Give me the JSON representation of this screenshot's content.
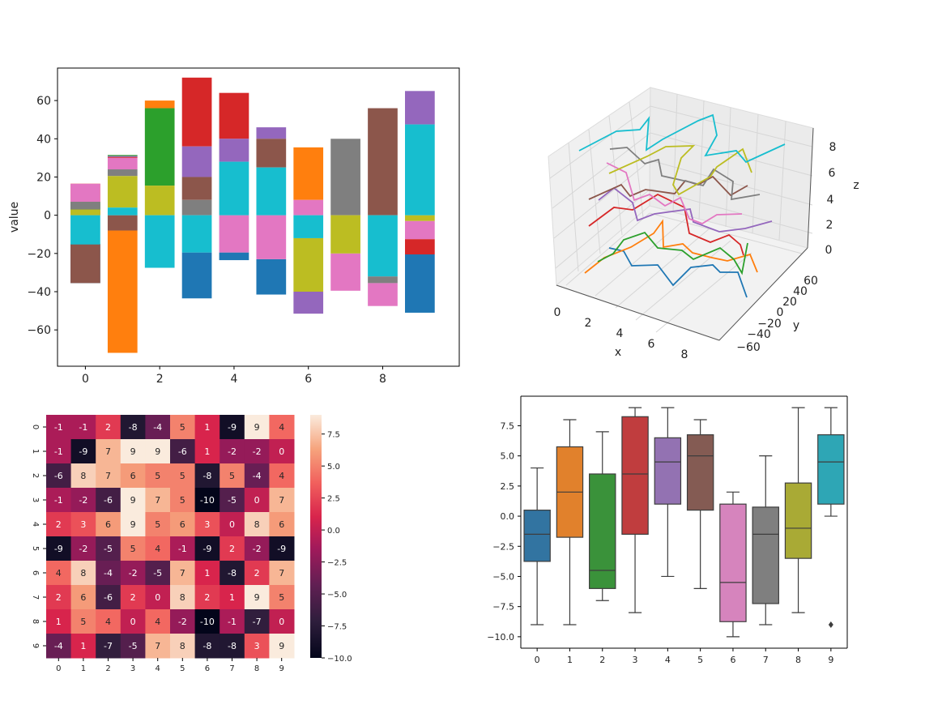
{
  "chart_data": [
    {
      "type": "bar",
      "stacked": true,
      "ylabel": "value",
      "xlim": [
        -0.75,
        10.06
      ],
      "ylim": [
        -79,
        77
      ],
      "x_ticks": [
        0,
        2,
        4,
        6,
        8
      ],
      "y_ticks": [
        -60,
        -40,
        -20,
        0,
        20,
        40,
        60
      ],
      "series_colors": [
        "#1f77b4",
        "#ff7f0e",
        "#2ca02c",
        "#d62728",
        "#9467bd",
        "#8c564b",
        "#e377c2",
        "#7f7f7f",
        "#bcbd22",
        "#17becf"
      ],
      "bars": [
        {
          "x": 0,
          "segments": [
            [
              0,
              -15,
              -35.5
            ],
            [
              1,
              7,
              16.5
            ],
            [
              2,
              2.5,
              7
            ],
            [
              3,
              0,
              2.5
            ],
            [
              4,
              -15.3,
              -15
            ],
            [
              5,
              -15,
              -35.5
            ],
            [
              6,
              7,
              16.5
            ],
            [
              7,
              3,
              7
            ],
            [
              8,
              0,
              3
            ],
            [
              9,
              0,
              -15.3
            ]
          ]
        },
        {
          "x": 1,
          "segments": [
            [
              0,
              -8,
              -8
            ],
            [
              1,
              -8,
              -72
            ],
            [
              2,
              31,
              31.5
            ],
            [
              3,
              30,
              30.5
            ],
            [
              4,
              30.5,
              31
            ],
            [
              5,
              0,
              -8
            ],
            [
              6,
              24,
              30
            ],
            [
              7,
              20.5,
              24
            ],
            [
              8,
              4,
              20.5
            ],
            [
              9,
              0,
              4
            ]
          ]
        },
        {
          "x": 2,
          "segments": [
            [
              0,
              0,
              0
            ],
            [
              1,
              56,
              60
            ],
            [
              2,
              15.5,
              56
            ],
            [
              3,
              0,
              0
            ],
            [
              4,
              0,
              0
            ],
            [
              5,
              0,
              0
            ],
            [
              6,
              0,
              0
            ],
            [
              7,
              0,
              0
            ],
            [
              8,
              0,
              15.5
            ],
            [
              9,
              0,
              -27.5
            ]
          ]
        },
        {
          "x": 3,
          "segments": [
            [
              0,
              -19.5,
              -43.5
            ],
            [
              1,
              0,
              0
            ],
            [
              2,
              0,
              0
            ],
            [
              3,
              36,
              72
            ],
            [
              4,
              20,
              36
            ],
            [
              5,
              8,
              20
            ],
            [
              6,
              0,
              0
            ],
            [
              7,
              0,
              8
            ],
            [
              8,
              0,
              0
            ],
            [
              9,
              0,
              -19.5
            ]
          ]
        },
        {
          "x": 4,
          "segments": [
            [
              0,
              -19.5,
              -23.5
            ],
            [
              1,
              0,
              0
            ],
            [
              2,
              0,
              0
            ],
            [
              3,
              40,
              64
            ],
            [
              4,
              28,
              40
            ],
            [
              5,
              0,
              0
            ],
            [
              6,
              0,
              -19.5
            ],
            [
              7,
              0,
              0
            ],
            [
              8,
              0,
              0
            ],
            [
              9,
              0,
              28
            ]
          ]
        },
        {
          "x": 5,
          "segments": [
            [
              0,
              -23,
              -41.5
            ],
            [
              1,
              0,
              0
            ],
            [
              2,
              0,
              0
            ],
            [
              3,
              0,
              0
            ],
            [
              4,
              40,
              46
            ],
            [
              5,
              25,
              40
            ],
            [
              6,
              0,
              -23
            ],
            [
              7,
              0,
              0
            ],
            [
              8,
              0,
              0
            ],
            [
              9,
              0,
              25
            ]
          ]
        },
        {
          "x": 6,
          "segments": [
            [
              0,
              0,
              0
            ],
            [
              1,
              8,
              35.5
            ],
            [
              2,
              0,
              0
            ],
            [
              3,
              0,
              0
            ],
            [
              4,
              -40,
              -51.5
            ],
            [
              5,
              0,
              0
            ],
            [
              6,
              0,
              8
            ],
            [
              7,
              0,
              0
            ],
            [
              8,
              -12,
              -40
            ],
            [
              9,
              0,
              -12
            ]
          ]
        },
        {
          "x": 7,
          "segments": [
            [
              0,
              0,
              0
            ],
            [
              1,
              0,
              0
            ],
            [
              2,
              0,
              0
            ],
            [
              3,
              0,
              0
            ],
            [
              4,
              0,
              0
            ],
            [
              5,
              0,
              0
            ],
            [
              6,
              -20,
              -39.5
            ],
            [
              7,
              0,
              40
            ],
            [
              8,
              0,
              -20
            ],
            [
              9,
              0,
              0
            ]
          ]
        },
        {
          "x": 8,
          "segments": [
            [
              0,
              0,
              0
            ],
            [
              1,
              0,
              0
            ],
            [
              2,
              0,
              0
            ],
            [
              3,
              0,
              0
            ],
            [
              4,
              0,
              0
            ],
            [
              5,
              0,
              56
            ],
            [
              6,
              -35.5,
              -47.5
            ],
            [
              7,
              -32,
              -35.5
            ],
            [
              8,
              0,
              0
            ],
            [
              9,
              0,
              -32
            ]
          ]
        },
        {
          "x": 9,
          "segments": [
            [
              0,
              -20.5,
              -51
            ],
            [
              1,
              0,
              0
            ],
            [
              2,
              0,
              0
            ],
            [
              3,
              -12.5,
              -20.5
            ],
            [
              4,
              47.5,
              65
            ],
            [
              5,
              0,
              0
            ],
            [
              6,
              -3,
              -12.5
            ],
            [
              7,
              0,
              0
            ],
            [
              8,
              0,
              -3
            ],
            [
              9,
              0,
              47.5
            ]
          ]
        }
      ]
    },
    {
      "type": "line3d",
      "xlabel": "x",
      "ylabel": "y",
      "zlabel": "z",
      "x_ticks": [
        "0",
        "2",
        "4",
        "6",
        "8"
      ],
      "y_ticks": [
        "60",
        "40",
        "20",
        "0",
        "−20",
        "−40",
        "−60"
      ],
      "z_ticks": [
        "0",
        "2",
        "4",
        "6",
        "8"
      ],
      "series_colors": [
        "#1f77b4",
        "#ff7f0e",
        "#2ca02c",
        "#d62728",
        "#9467bd",
        "#8c564b",
        "#e377c2",
        "#7f7f7f",
        "#bcbd22",
        "#17becf"
      ]
    },
    {
      "type": "heatmap",
      "x_ticks": [
        "0",
        "1",
        "2",
        "3",
        "4",
        "5",
        "6",
        "7",
        "8",
        "9"
      ],
      "y_ticks": [
        "0",
        "1",
        "2",
        "3",
        "4",
        "5",
        "6",
        "7",
        "8",
        "9"
      ],
      "vmin": -10,
      "vmax": 9,
      "colorbar_ticks": [
        "7.5",
        "5.0",
        "2.5",
        "0.0",
        "−2.5",
        "−5.0",
        "−7.5",
        "−10.0"
      ],
      "colorbar_values": [
        7.5,
        5,
        2.5,
        0,
        -2.5,
        -5,
        -7.5,
        -10
      ],
      "values": [
        [
          -1,
          -1,
          2,
          -8,
          -4,
          5,
          1,
          -9,
          9,
          4
        ],
        [
          -1,
          -9,
          7,
          9,
          9,
          -6,
          1,
          -2,
          -2,
          0
        ],
        [
          -6,
          8,
          7,
          6,
          5,
          5,
          -8,
          5,
          -4,
          4
        ],
        [
          -1,
          -2,
          -6,
          9,
          7,
          5,
          -10,
          -5,
          0,
          7
        ],
        [
          2,
          3,
          6,
          9,
          5,
          6,
          3,
          0,
          8,
          6
        ],
        [
          -9,
          -2,
          -5,
          5,
          4,
          -1,
          -9,
          2,
          -2,
          -9
        ],
        [
          4,
          8,
          -4,
          -2,
          -5,
          7,
          1,
          -8,
          2,
          7
        ],
        [
          2,
          6,
          -6,
          2,
          0,
          8,
          2,
          1,
          9,
          5
        ],
        [
          1,
          5,
          4,
          0,
          4,
          -2,
          -10,
          -1,
          -7,
          0
        ],
        [
          -4,
          1,
          -7,
          -5,
          7,
          8,
          -8,
          -8,
          3,
          9
        ]
      ]
    },
    {
      "type": "box",
      "categories": [
        "0",
        "1",
        "2",
        "3",
        "4",
        "5",
        "6",
        "7",
        "8",
        "9"
      ],
      "y_ticks": [
        "7.5",
        "5.0",
        "2.5",
        "0.0",
        "−2.5",
        "−5.0",
        "−7.5",
        "−10.0"
      ],
      "y_tick_values": [
        7.5,
        5,
        2.5,
        0,
        -2.5,
        -5,
        -7.5,
        -10
      ],
      "ylim": [
        -10.95,
        9.95
      ],
      "colors": [
        "#3274a1",
        "#e1812c",
        "#3a923a",
        "#c03d3e",
        "#9372b2",
        "#845b53",
        "#d684bd",
        "#7f7f7f",
        "#a9aa35",
        "#2ea6b5"
      ],
      "boxes": [
        {
          "min": -9,
          "q1": -3.75,
          "median": -1.5,
          "q3": 0.5,
          "max": 4
        },
        {
          "min": -9,
          "q1": -1.75,
          "median": 2,
          "q3": 5.75,
          "max": 8
        },
        {
          "min": -7,
          "q1": -6,
          "median": -4.5,
          "q3": 3.5,
          "max": 7
        },
        {
          "min": -8,
          "q1": -1.5,
          "median": 3.5,
          "q3": 8.25,
          "max": 9
        },
        {
          "min": -5,
          "q1": 1,
          "median": 4.5,
          "q3": 6.5,
          "max": 9
        },
        {
          "min": -6,
          "q1": 0.5,
          "median": 5,
          "q3": 6.75,
          "max": 8
        },
        {
          "min": -10,
          "q1": -8.75,
          "median": -5.5,
          "q3": 1,
          "max": 2
        },
        {
          "min": -9,
          "q1": -7.25,
          "median": -1.5,
          "q3": 0.75,
          "max": 5
        },
        {
          "min": -8,
          "q1": -3.5,
          "median": -1,
          "q3": 2.75,
          "max": 9
        },
        {
          "min": 0,
          "q1": 1,
          "median": 4.5,
          "q3": 6.75,
          "max": 9,
          "outliers": [
            -9
          ]
        }
      ]
    }
  ]
}
